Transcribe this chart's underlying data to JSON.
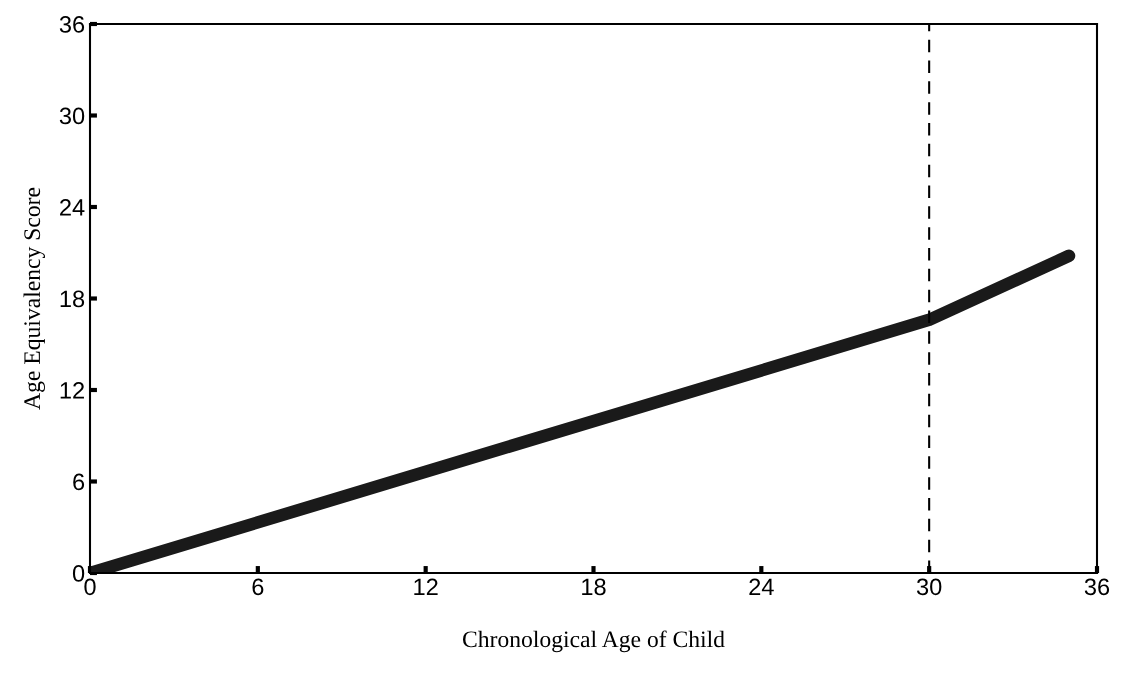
{
  "chart_data": {
    "type": "line",
    "xlabel": "Chronological Age of Child",
    "ylabel": "Age Equivalency Score",
    "x": [
      0,
      30,
      35
    ],
    "series": [
      {
        "color": "#1a1a1a",
        "values": [
          0,
          16.6,
          20.8
        ]
      }
    ],
    "xlim": [
      0,
      36
    ],
    "xticks": [
      0,
      6,
      12,
      18,
      24,
      30,
      36
    ],
    "ylim": [
      0,
      36
    ],
    "yticks": [
      0,
      6,
      12,
      18,
      24,
      30,
      36
    ],
    "ref_lines": [
      {
        "axis": "x",
        "value": 30,
        "label": null,
        "color": "#000000",
        "line_style": "dashed"
      }
    ],
    "grid": false,
    "legend": false,
    "line_style": "solid"
  }
}
